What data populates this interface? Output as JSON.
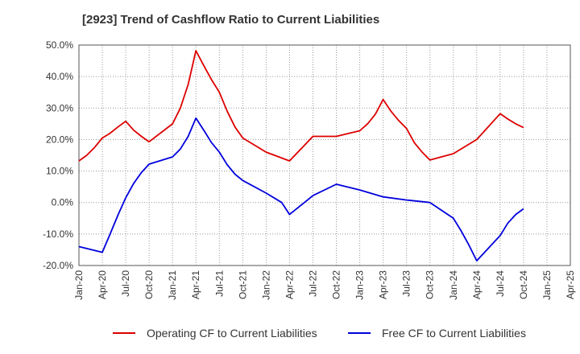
{
  "title": "[2923]  Trend of Cashflow Ratio to Current Liabilities",
  "chart_data": {
    "type": "line",
    "title": "[2923]  Trend of Cashflow Ratio to Current Liabilities",
    "xlabel": "",
    "ylabel": "",
    "ylim": [
      -20,
      50
    ],
    "y_ticks": [
      "-20.0%",
      "-10.0%",
      "0.0%",
      "10.0%",
      "20.0%",
      "30.0%",
      "40.0%",
      "50.0%"
    ],
    "y_tick_values": [
      -20,
      -10,
      0,
      10,
      20,
      30,
      40,
      50
    ],
    "x_ticks": [
      "Jan-20",
      "Apr-20",
      "Jul-20",
      "Oct-20",
      "Jan-21",
      "Apr-21",
      "Jul-21",
      "Oct-21",
      "Jan-22",
      "Apr-22",
      "Jul-22",
      "Oct-22",
      "Jan-23",
      "Apr-23",
      "Jul-23",
      "Oct-23",
      "Jan-24",
      "Apr-24",
      "Jul-24",
      "Oct-24",
      "Jan-25",
      "Apr-25"
    ],
    "grid": true,
    "legend_position": "bottom",
    "series": [
      {
        "name": "Operating CF to Current Liabilities",
        "color": "#dd0000",
        "points": [
          {
            "x": "Jan-20",
            "y": 13.2
          },
          {
            "x": "Feb-20",
            "y": 15.0
          },
          {
            "x": "Mar-20",
            "y": 17.5
          },
          {
            "x": "Apr-20",
            "y": 20.5
          },
          {
            "x": "May-20",
            "y": 22.0
          },
          {
            "x": "Jun-20",
            "y": 24.0
          },
          {
            "x": "Jul-20",
            "y": 25.8
          },
          {
            "x": "Aug-20",
            "y": 23.0
          },
          {
            "x": "Sep-20",
            "y": 21.0
          },
          {
            "x": "Oct-20",
            "y": 19.3
          },
          {
            "x": "Jan-21",
            "y": 25.0
          },
          {
            "x": "Feb-21",
            "y": 30.0
          },
          {
            "x": "Mar-21",
            "y": 37.5
          },
          {
            "x": "Apr-21",
            "y": 48.2
          },
          {
            "x": "May-21",
            "y": 43.5
          },
          {
            "x": "Jun-21",
            "y": 39.0
          },
          {
            "x": "Jul-21",
            "y": 35.0
          },
          {
            "x": "Aug-21",
            "y": 29.0
          },
          {
            "x": "Sep-21",
            "y": 24.0
          },
          {
            "x": "Oct-21",
            "y": 20.5
          },
          {
            "x": "Jan-22",
            "y": 16.0
          },
          {
            "x": "Apr-22",
            "y": 13.2
          },
          {
            "x": "Jul-22",
            "y": 21.0
          },
          {
            "x": "Oct-22",
            "y": 21.0
          },
          {
            "x": "Jan-23",
            "y": 22.8
          },
          {
            "x": "Feb-23",
            "y": 25.0
          },
          {
            "x": "Mar-23",
            "y": 28.0
          },
          {
            "x": "Apr-23",
            "y": 32.7
          },
          {
            "x": "May-23",
            "y": 29.0
          },
          {
            "x": "Jun-23",
            "y": 26.0
          },
          {
            "x": "Jul-23",
            "y": 23.5
          },
          {
            "x": "Aug-23",
            "y": 19.0
          },
          {
            "x": "Sep-23",
            "y": 16.0
          },
          {
            "x": "Oct-23",
            "y": 13.5
          },
          {
            "x": "Jan-24",
            "y": 15.5
          },
          {
            "x": "Apr-24",
            "y": 20.0
          },
          {
            "x": "Jul-24",
            "y": 28.2
          },
          {
            "x": "Aug-24",
            "y": 26.5
          },
          {
            "x": "Sep-24",
            "y": 25.0
          },
          {
            "x": "Oct-24",
            "y": 23.8
          }
        ]
      },
      {
        "name": "Free CF to Current Liabilities",
        "color": "#0000dd",
        "points": [
          {
            "x": "Jan-20",
            "y": -14.0
          },
          {
            "x": "Apr-20",
            "y": -15.8
          },
          {
            "x": "May-20",
            "y": -10.0
          },
          {
            "x": "Jun-20",
            "y": -4.0
          },
          {
            "x": "Jul-20",
            "y": 1.5
          },
          {
            "x": "Aug-20",
            "y": 6.0
          },
          {
            "x": "Sep-20",
            "y": 9.5
          },
          {
            "x": "Oct-20",
            "y": 12.2
          },
          {
            "x": "Jan-21",
            "y": 14.5
          },
          {
            "x": "Feb-21",
            "y": 17.0
          },
          {
            "x": "Mar-21",
            "y": 21.0
          },
          {
            "x": "Apr-21",
            "y": 26.8
          },
          {
            "x": "May-21",
            "y": 23.0
          },
          {
            "x": "Jun-21",
            "y": 19.0
          },
          {
            "x": "Jul-21",
            "y": 16.0
          },
          {
            "x": "Aug-21",
            "y": 12.0
          },
          {
            "x": "Sep-21",
            "y": 9.0
          },
          {
            "x": "Oct-21",
            "y": 7.0
          },
          {
            "x": "Jan-22",
            "y": 3.0
          },
          {
            "x": "Mar-22",
            "y": 0.0
          },
          {
            "x": "Apr-22",
            "y": -3.8
          },
          {
            "x": "Jul-22",
            "y": 2.2
          },
          {
            "x": "Oct-22",
            "y": 5.8
          },
          {
            "x": "Jan-23",
            "y": 4.0
          },
          {
            "x": "Apr-23",
            "y": 1.8
          },
          {
            "x": "Jul-23",
            "y": 0.8
          },
          {
            "x": "Oct-23",
            "y": 0.0
          },
          {
            "x": "Jan-24",
            "y": -5.0
          },
          {
            "x": "Feb-24",
            "y": -9.0
          },
          {
            "x": "Mar-24",
            "y": -13.5
          },
          {
            "x": "Apr-24",
            "y": -18.5
          },
          {
            "x": "Jul-24",
            "y": -10.5
          },
          {
            "x": "Aug-24",
            "y": -6.5
          },
          {
            "x": "Sep-24",
            "y": -3.8
          },
          {
            "x": "Oct-24",
            "y": -2.0
          }
        ]
      }
    ]
  }
}
